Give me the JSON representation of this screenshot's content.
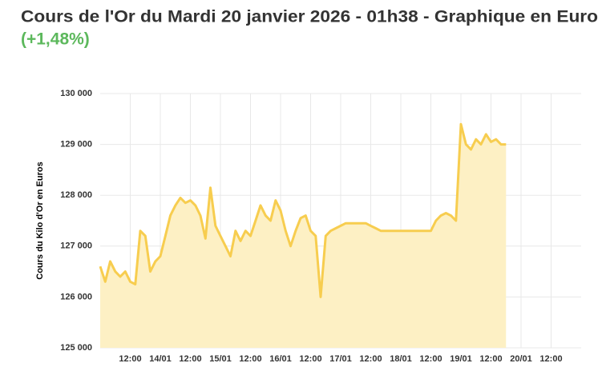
{
  "chart_data": {
    "type": "area",
    "title": "Cours de l'Or du Mardi 20 janvier 2026 - 01h38 - Graphique en Euro",
    "subtitle": "(+1,48%)",
    "y_label": "Cours du Kilo d'Or en Euros",
    "color": "#f7cd4f",
    "fill": "#fdf0c4",
    "grid": true,
    "x": [
      0,
      2,
      4,
      6,
      8,
      10,
      12,
      14,
      16,
      18,
      20,
      22,
      24,
      26,
      28,
      30,
      32,
      34,
      36,
      38,
      40,
      42,
      44,
      46,
      48,
      50,
      52,
      54,
      56,
      58,
      60,
      62,
      64,
      66,
      68,
      70,
      72,
      74,
      76,
      78,
      80,
      82,
      84,
      86,
      88,
      90,
      92,
      94,
      96,
      98,
      100,
      102,
      104,
      106,
      108,
      110,
      112,
      114,
      116,
      118,
      120,
      122,
      124,
      126,
      128,
      130,
      132,
      134,
      136,
      138,
      140,
      142,
      144,
      146,
      148,
      150,
      152,
      154,
      156,
      158,
      160,
      162
    ],
    "values": [
      126600,
      126300,
      126700,
      126500,
      126400,
      126500,
      126300,
      126250,
      127300,
      127200,
      126500,
      126700,
      126800,
      127200,
      127600,
      127800,
      127950,
      127850,
      127900,
      127800,
      127600,
      127150,
      128150,
      127400,
      127200,
      127000,
      126800,
      127300,
      127100,
      127300,
      127200,
      127500,
      127800,
      127600,
      127500,
      127900,
      127700,
      127300,
      127000,
      127300,
      127550,
      127600,
      127300,
      127200,
      126000,
      127200,
      127300,
      127350,
      127400,
      127450,
      127450,
      127450,
      127450,
      127450,
      127400,
      127350,
      127300,
      127300,
      127300,
      127300,
      127300,
      127300,
      127300,
      127300,
      127300,
      127300,
      127300,
      127500,
      127600,
      127650,
      127600,
      127500,
      129400,
      129000,
      128900,
      129100,
      129000,
      129200,
      129050,
      129100,
      129000,
      129000
    ],
    "xlim": [
      0,
      192
    ],
    "xticks": [
      {
        "value": 12,
        "label": "12:00"
      },
      {
        "value": 24,
        "label": "14/01"
      },
      {
        "value": 36,
        "label": "12:00"
      },
      {
        "value": 48,
        "label": "15/01"
      },
      {
        "value": 60,
        "label": "12:00"
      },
      {
        "value": 72,
        "label": "16/01"
      },
      {
        "value": 84,
        "label": "12:00"
      },
      {
        "value": 96,
        "label": "17/01"
      },
      {
        "value": 108,
        "label": "12:00"
      },
      {
        "value": 120,
        "label": "18/01"
      },
      {
        "value": 132,
        "label": "12:00"
      },
      {
        "value": 144,
        "label": "19/01"
      },
      {
        "value": 156,
        "label": "12:00"
      },
      {
        "value": 168,
        "label": "20/01"
      },
      {
        "value": 180,
        "label": "12:00"
      }
    ],
    "ylim": [
      125000,
      130000
    ],
    "yticks": [
      {
        "value": 125000,
        "label": "125 000"
      },
      {
        "value": 126000,
        "label": "126 000"
      },
      {
        "value": 127000,
        "label": "127 000"
      },
      {
        "value": 128000,
        "label": "128 000"
      },
      {
        "value": 129000,
        "label": "129 000"
      },
      {
        "value": 130000,
        "label": "130 000"
      }
    ]
  }
}
